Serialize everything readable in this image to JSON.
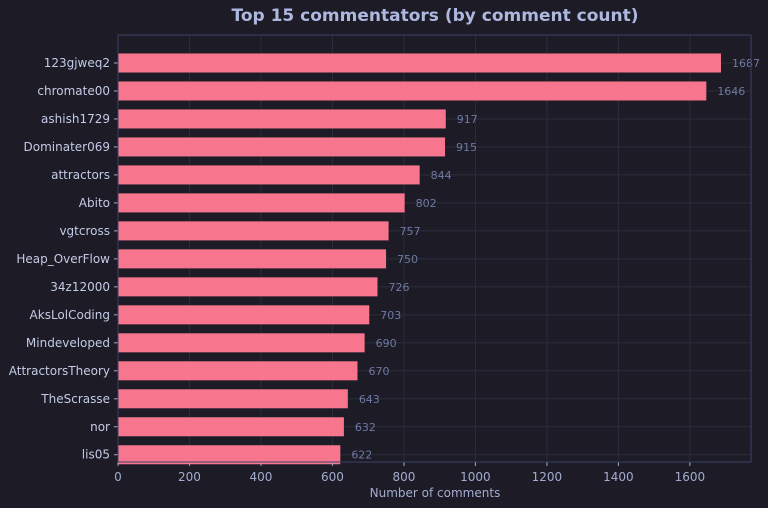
{
  "chart_data": {
    "type": "bar",
    "orientation": "horizontal",
    "title": "Top 15 commentators (by comment count)",
    "xlabel": "Number of comments",
    "ylabel": "",
    "xlim": [
      0,
      1771
    ],
    "xticks": [
      0,
      200,
      400,
      600,
      800,
      1000,
      1200,
      1400,
      1600
    ],
    "grid": true,
    "categories": [
      "123gjweq2",
      "chromate00",
      "ashish1729",
      "Dominater069",
      "attractors",
      "Abito",
      "vgtcross",
      "Heap_OverFlow",
      "34z12000",
      "AksLolCoding",
      "Mindeveloped",
      "AttractorsTheory",
      "TheScrasse",
      "nor",
      "lis05"
    ],
    "values": [
      1687,
      1646,
      917,
      915,
      844,
      802,
      757,
      750,
      726,
      703,
      690,
      670,
      643,
      632,
      622
    ],
    "colors": {
      "bar": "#f7768e",
      "background": "#1c1b26",
      "grid": "#2c2c3c",
      "frame": "#3c4166"
    }
  }
}
